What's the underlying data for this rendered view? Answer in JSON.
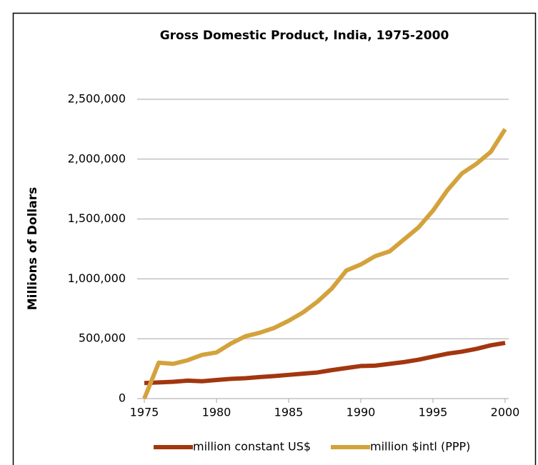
{
  "chart_data": {
    "type": "line",
    "title": "Gross Domestic Product, India, 1975-2000",
    "y_label": "Millions of Dollars",
    "x": [
      1975,
      1976,
      1977,
      1978,
      1979,
      1980,
      1981,
      1982,
      1983,
      1984,
      1985,
      1986,
      1987,
      1988,
      1989,
      1990,
      1991,
      1992,
      1993,
      1994,
      1995,
      1996,
      1997,
      1998,
      1999,
      2000
    ],
    "series": [
      {
        "name": "million constant US$",
        "color": "#a3360f",
        "values": [
          130000,
          135000,
          140000,
          150000,
          145000,
          155000,
          165000,
          170000,
          180000,
          188000,
          198000,
          208000,
          218000,
          238000,
          255000,
          272000,
          275000,
          290000,
          305000,
          325000,
          350000,
          375000,
          392000,
          415000,
          445000,
          465000
        ]
      },
      {
        "name": "million $intl (PPP)",
        "color": "#d4a23c",
        "values": [
          0,
          300000,
          290000,
          320000,
          365000,
          385000,
          460000,
          520000,
          550000,
          590000,
          650000,
          720000,
          810000,
          920000,
          1070000,
          1120000,
          1190000,
          1230000,
          1330000,
          1430000,
          1570000,
          1740000,
          1880000,
          1960000,
          2060000,
          2250000
        ]
      }
    ],
    "xlim": [
      1975,
      2000
    ],
    "xticks": [
      1975,
      1980,
      1985,
      1990,
      1995,
      2000
    ],
    "ylim": [
      0,
      2500000
    ],
    "yticks": [
      0,
      {
        "value": 500000,
        "label": "500,000"
      },
      {
        "value": 1000000,
        "label": "1,000,000"
      },
      {
        "value": 1500000,
        "label": "1,500,000"
      },
      {
        "value": 2000000,
        "label": "2,000,000"
      },
      {
        "value": 2500000,
        "label": "2,500,000"
      }
    ],
    "grid": true,
    "legend": "bottom"
  }
}
